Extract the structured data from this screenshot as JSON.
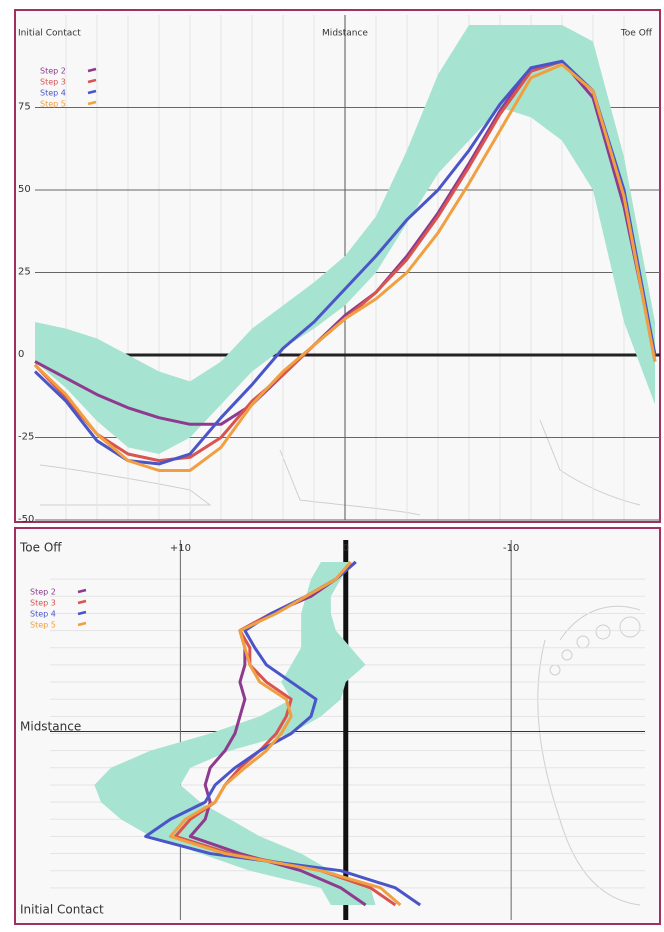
{
  "chart_data": [
    {
      "type": "line",
      "phase_labels": [
        "Initial Contact",
        "Midstance",
        "Toe Off"
      ],
      "x": [
        0,
        5,
        10,
        15,
        20,
        25,
        30,
        35,
        40,
        45,
        50,
        55,
        60,
        65,
        70,
        75,
        80,
        85,
        90,
        95,
        100
      ],
      "xlim": [
        0,
        100
      ],
      "ylim": [
        -50,
        100
      ],
      "yticks": [
        -50,
        -25,
        0,
        25,
        50,
        75
      ],
      "grid": true,
      "band": {
        "color": "#a6e3d0",
        "upper": [
          10,
          8,
          5,
          0,
          -5,
          -8,
          -2,
          8,
          15,
          22,
          30,
          42,
          62,
          85,
          100,
          100,
          100,
          100,
          95,
          60,
          10
        ],
        "lower": [
          -2,
          -10,
          -20,
          -28,
          -30,
          -25,
          -15,
          -5,
          2,
          8,
          15,
          25,
          40,
          55,
          65,
          75,
          72,
          65,
          50,
          10,
          -15
        ]
      },
      "series": [
        {
          "name": "Step 2",
          "color": "#8e3a8e",
          "values": [
            -2,
            -7,
            -12,
            -16,
            -19,
            -21,
            -21,
            -15,
            -6,
            3,
            12,
            19,
            30,
            43,
            58,
            74,
            87,
            89,
            78,
            45,
            0
          ]
        },
        {
          "name": "Step 3",
          "color": "#d9534f",
          "values": [
            -3,
            -13,
            -24,
            -30,
            -32,
            -31,
            -25,
            -14,
            -6,
            3,
            11,
            19,
            29,
            42,
            57,
            73,
            86,
            89,
            80,
            48,
            -2
          ]
        },
        {
          "name": "Step 4",
          "color": "#4a55c8",
          "values": [
            -5,
            -14,
            -26,
            -32,
            -33,
            -30,
            -19,
            -9,
            2,
            10,
            20,
            30,
            41,
            50,
            62,
            76,
            87,
            89,
            80,
            50,
            0
          ]
        },
        {
          "name": "Step 5",
          "color": "#f0a040",
          "values": [
            -3,
            -12,
            -24,
            -32,
            -35,
            -35,
            -28,
            -15,
            -5,
            3,
            11,
            17,
            25,
            37,
            52,
            68,
            84,
            88,
            80,
            48,
            -2
          ]
        }
      ]
    },
    {
      "type": "line",
      "orientation": "vertical",
      "phase_labels": [
        "Initial Contact",
        "Midstance",
        "Toe Off"
      ],
      "y": [
        0,
        5,
        10,
        15,
        20,
        25,
        30,
        35,
        40,
        45,
        50,
        55,
        60,
        65,
        70,
        75,
        80,
        85,
        90,
        95,
        100
      ],
      "ylim": [
        0,
        100
      ],
      "xlim": [
        20,
        -19
      ],
      "xticks": [
        {
          "value": 10,
          "label": "+10"
        },
        0,
        -10
      ],
      "grid": true,
      "band": {
        "color": "#a6e3d0",
        "upper": [
          0.9,
          1.5,
          5.8,
          8.8,
          11.8,
          13.6,
          14.8,
          15.2,
          14.2,
          11.8,
          8.2,
          5.2,
          3.3,
          3.9,
          3.3,
          2.7,
          2.7,
          2.7,
          2.4,
          2.1,
          1.5
        ],
        "lower": [
          -1.8,
          -1.5,
          0.9,
          2.7,
          5.2,
          7,
          8.8,
          10,
          9.4,
          7,
          3.3,
          1.5,
          0.3,
          0,
          -1.2,
          -0.3,
          0.6,
          0.9,
          0.9,
          0.3,
          -0.3
        ]
      },
      "series": [
        {
          "name": "Step 2",
          "color": "#8e3a8e",
          "values": [
            -1.2,
            0.3,
            2.7,
            6.4,
            9.4,
            8.5,
            8.2,
            8.5,
            8.2,
            7.3,
            6.7,
            6.4,
            6.1,
            6.4,
            6.1,
            6.1,
            6.4,
            4.5,
            2.1,
            0.6,
            -0.6
          ]
        },
        {
          "name": "Step 3",
          "color": "#d9534f",
          "values": [
            -3,
            -1.5,
            1.5,
            7,
            10.3,
            9.4,
            7.9,
            7.3,
            6.4,
            5.2,
            4.2,
            3.6,
            3.3,
            4.8,
            5.8,
            5.8,
            6.4,
            4.5,
            2.4,
            0.6,
            -0.6
          ]
        },
        {
          "name": "Step 4",
          "color": "#4a55c8",
          "values": [
            -4.5,
            -3,
            0.3,
            8.2,
            12.1,
            10.6,
            8.5,
            7.9,
            6.7,
            5.2,
            3.3,
            2.1,
            1.8,
            3.3,
            4.8,
            5.5,
            6.1,
            4.5,
            2.4,
            0.6,
            -0.6
          ]
        },
        {
          "name": "Step 5",
          "color": "#f0a040",
          "values": [
            -3.3,
            -2.1,
            1.5,
            7.3,
            10.6,
            9.7,
            7.9,
            7.3,
            6.1,
            4.8,
            3.9,
            3.3,
            3.6,
            5.2,
            5.8,
            6.1,
            6.4,
            4.2,
            2.4,
            0.6,
            -0.3
          ]
        }
      ]
    }
  ]
}
